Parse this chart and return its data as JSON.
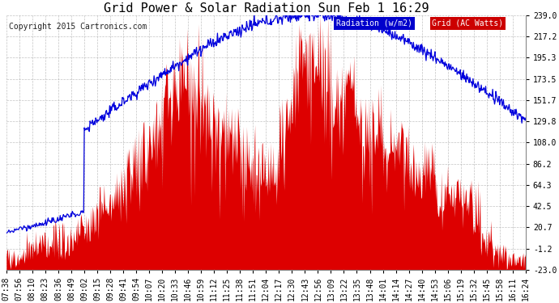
{
  "title": "Grid Power & Solar Radiation Sun Feb 1 16:29",
  "copyright": "Copyright 2015 Cartronics.com",
  "yticks": [
    -23.0,
    -1.2,
    20.7,
    42.5,
    64.3,
    86.2,
    108.0,
    129.8,
    151.7,
    173.5,
    195.3,
    217.2,
    239.0
  ],
  "ylim": [
    -23.0,
    239.0
  ],
  "bg_color": "#ffffff",
  "grid_color": "#aaaaaa",
  "radiation_color": "#0000dd",
  "grid_ac_color": "#dd0000",
  "title_fontsize": 11,
  "copyright_fontsize": 7,
  "tick_fontsize": 7,
  "xtick_labels": [
    "07:38",
    "07:56",
    "08:10",
    "08:23",
    "08:36",
    "08:49",
    "09:02",
    "09:15",
    "09:28",
    "09:41",
    "09:54",
    "10:07",
    "10:20",
    "10:33",
    "10:46",
    "10:59",
    "11:12",
    "11:25",
    "11:38",
    "11:51",
    "12:04",
    "12:17",
    "12:30",
    "12:43",
    "12:56",
    "13:09",
    "13:22",
    "13:35",
    "13:48",
    "14:01",
    "14:14",
    "14:27",
    "14:40",
    "14:53",
    "15:06",
    "15:19",
    "15:32",
    "15:45",
    "15:58",
    "16:11",
    "16:24"
  ]
}
